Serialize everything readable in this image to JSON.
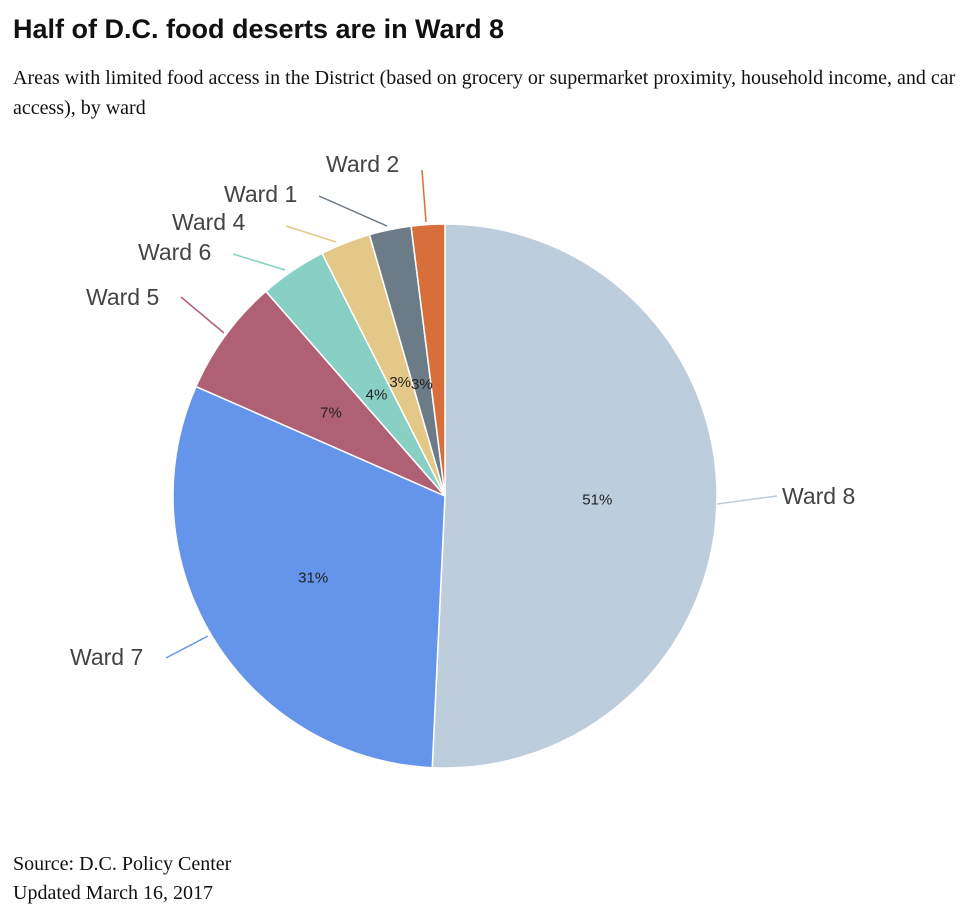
{
  "chart_data": {
    "type": "pie",
    "title": "Half of D.C. food deserts are in Ward 8",
    "subtitle": "Areas with limited food access in the District (based on grocery or supermarket proximity, household income, and car access), by ward",
    "slices": [
      {
        "label": "Ward 8",
        "value": 51,
        "value_label": "51%",
        "color": "#bdcddb"
      },
      {
        "label": "Ward 7",
        "value": 31,
        "value_label": "31%",
        "color": "#6495ea"
      },
      {
        "label": "Ward 5",
        "value": 7,
        "value_label": "7%",
        "color": "#b06074"
      },
      {
        "label": "Ward 6",
        "value": 4,
        "value_label": "4%",
        "color": "#88d0c3"
      },
      {
        "label": "Ward 4",
        "value": 3,
        "value_label": "3%",
        "color": "#e4c888"
      },
      {
        "label": "Ward 1",
        "value": 2.5,
        "value_label": "3%",
        "color": "#6c7b88"
      },
      {
        "label": "Ward 2",
        "value": 2,
        "value_label": "",
        "color": "#d86e3a"
      }
    ]
  },
  "footer": {
    "source": "Source: D.C. Policy Center",
    "updated": "Updated March 16, 2017"
  }
}
